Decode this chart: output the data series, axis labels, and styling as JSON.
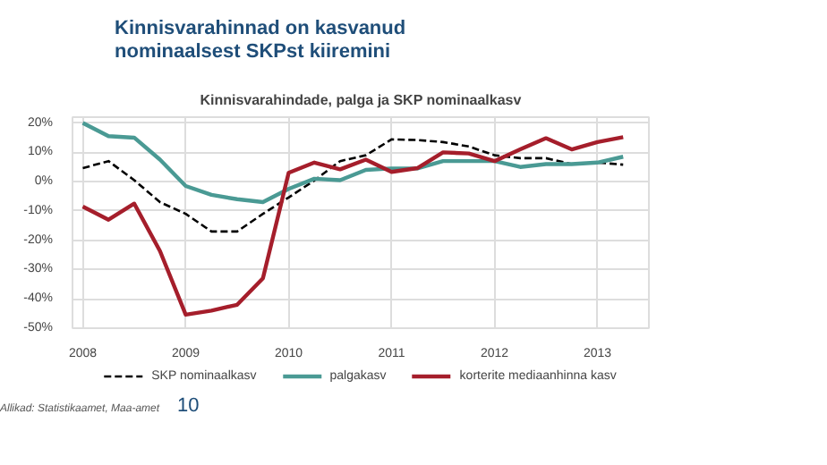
{
  "chart_data": {
    "type": "line",
    "title": "Kinnisvarahinnad on kasvanud\nnominaalsest SKPst kiiremini",
    "subtitle": "Kinnisvarahindade, palga ja SKP nominaalkasv",
    "x": [
      2008,
      2008.25,
      2008.5,
      2008.75,
      2009,
      2009.25,
      2009.5,
      2009.75,
      2010,
      2010.25,
      2010.5,
      2010.75,
      2011,
      2011.25,
      2011.5,
      2011.75,
      2012,
      2012.25,
      2012.5,
      2012.75,
      2013,
      2013.25
    ],
    "series": [
      {
        "name": "SKP nominaalkasv",
        "color": "#000000",
        "line_style": "dashed",
        "values": [
          4.6,
          7,
          0.5,
          -7,
          -11,
          -17,
          -17,
          -11,
          -5.4,
          0.4,
          7,
          9,
          14.4,
          14.2,
          13.5,
          12,
          9,
          8,
          8,
          6,
          6.5,
          5.8
        ]
      },
      {
        "name": "palgakasv",
        "color": "#4a9a94",
        "line_style": "solid",
        "values": [
          20,
          15.5,
          15,
          7.5,
          -1.5,
          -4.5,
          -6,
          -7,
          -2.5,
          1,
          0.5,
          4,
          4.5,
          4.5,
          7,
          7,
          7,
          5,
          6,
          6,
          6.5,
          8.5
        ]
      },
      {
        "name": "korterite mediaanhinna kasv",
        "color": "#a51e2b",
        "line_style": "solid",
        "values": [
          -8.5,
          -13,
          -7.5,
          -23.7,
          -45.4,
          -44,
          -42,
          -33,
          3,
          6.5,
          4.2,
          7.5,
          3.3,
          4.6,
          10,
          9.6,
          7,
          11,
          14.8,
          11,
          13.5,
          15.2
        ]
      }
    ],
    "xlim": [
      2007.9,
      2013.5
    ],
    "xticks": [
      2008,
      2009,
      2010,
      2011,
      2012,
      2013
    ],
    "ylim": [
      -50,
      22
    ],
    "yticks": [
      {
        "value": -50,
        "label": "-50%"
      },
      {
        "value": -40,
        "label": "-40%"
      },
      {
        "value": -30,
        "label": "-30%"
      },
      {
        "value": -20,
        "label": "-20%"
      },
      {
        "value": -10,
        "label": "-10%"
      },
      {
        "value": 0,
        "label": "0%"
      },
      {
        "value": 10,
        "label": "10%"
      },
      {
        "value": 20,
        "label": "20%"
      }
    ],
    "grid": true,
    "legend": "bottom",
    "marker": "none",
    "annotations": [
      "Allikad: Statistikaamet, Maa-amet",
      "10"
    ]
  }
}
